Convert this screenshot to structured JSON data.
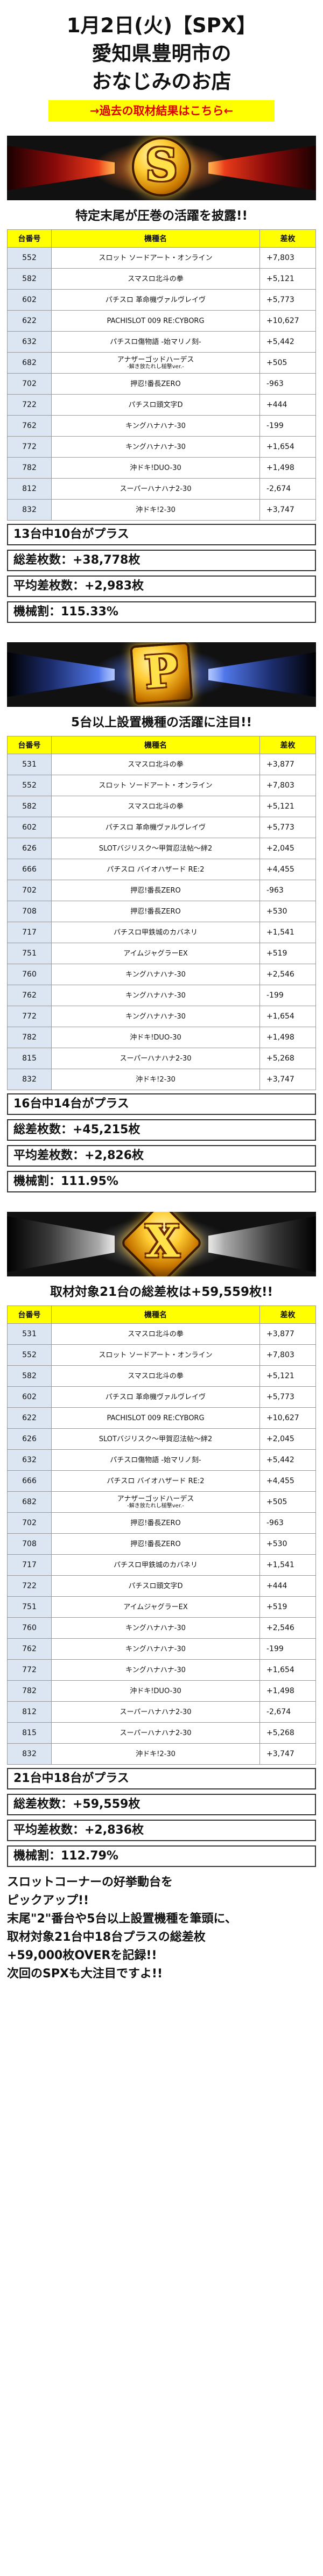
{
  "header": {
    "line1": "1月2日(火)【SPX】",
    "line2": "愛知県豊明市の",
    "line3": "おなじみのお店",
    "cta": "→過去の取材結果はこちら←"
  },
  "colors": {
    "highlight_yellow": "#ffff00",
    "cta_red": "#e00000",
    "id_cell": "#dce6f2"
  },
  "table_headers": {
    "id": "台番号",
    "name": "機種名",
    "diff": "差枚"
  },
  "sections": [
    {
      "banner_letter": "S",
      "title": "特定末尾が圧巻の活躍を披露!!",
      "rows": [
        {
          "id": "552",
          "name": "スロット ソードアート・オンライン",
          "sub": "",
          "diff": "+7,803"
        },
        {
          "id": "582",
          "name": "スマスロ北斗の拳",
          "sub": "",
          "diff": "+5,121"
        },
        {
          "id": "602",
          "name": "パチスロ 革命機ヴァルヴレイヴ",
          "sub": "",
          "diff": "+5,773"
        },
        {
          "id": "622",
          "name": "PACHISLOT 009 RE:CYBORG",
          "sub": "",
          "diff": "+10,627"
        },
        {
          "id": "632",
          "name": "パチスロ傷物語 -始マリノ刻-",
          "sub": "",
          "diff": "+5,442"
        },
        {
          "id": "682",
          "name": "アナザーゴッドハーデス",
          "sub": "-解き放たれし槌撃ver.-",
          "diff": "+505"
        },
        {
          "id": "702",
          "name": "押忍!番長ZERO",
          "sub": "",
          "diff": "-963"
        },
        {
          "id": "722",
          "name": "パチスロ頭文字D",
          "sub": "",
          "diff": "+444"
        },
        {
          "id": "762",
          "name": "キングハナハナ-30",
          "sub": "",
          "diff": "-199"
        },
        {
          "id": "772",
          "name": "キングハナハナ-30",
          "sub": "",
          "diff": "+1,654"
        },
        {
          "id": "782",
          "name": "沖ドキ!DUO-30",
          "sub": "",
          "diff": "+1,498"
        },
        {
          "id": "812",
          "name": "スーパーハナハナ2-30",
          "sub": "",
          "diff": "-2,674"
        },
        {
          "id": "832",
          "name": "沖ドキ!2-30",
          "sub": "",
          "diff": "+3,747"
        }
      ],
      "summary": [
        "13台中10台がプラス",
        "総差枚数：+38,778枚",
        "平均差枚数：+2,983枚",
        "機械割：115.33%"
      ]
    },
    {
      "banner_letter": "P",
      "title": "5台以上設置機種の活躍に注目!!",
      "rows": [
        {
          "id": "531",
          "name": "スマスロ北斗の拳",
          "sub": "",
          "diff": "+3,877"
        },
        {
          "id": "552",
          "name": "スロット ソードアート・オンライン",
          "sub": "",
          "diff": "+7,803"
        },
        {
          "id": "582",
          "name": "スマスロ北斗の拳",
          "sub": "",
          "diff": "+5,121"
        },
        {
          "id": "602",
          "name": "パチスロ 革命機ヴァルヴレイヴ",
          "sub": "",
          "diff": "+5,773"
        },
        {
          "id": "626",
          "name": "SLOTバジリスク～甲賀忍法帖～絆2",
          "sub": "",
          "diff": "+2,045"
        },
        {
          "id": "666",
          "name": "パチスロ バイオハザード RE:2",
          "sub": "",
          "diff": "+4,455"
        },
        {
          "id": "702",
          "name": "押忍!番長ZERO",
          "sub": "",
          "diff": "-963"
        },
        {
          "id": "708",
          "name": "押忍!番長ZERO",
          "sub": "",
          "diff": "+530"
        },
        {
          "id": "717",
          "name": "パチスロ甲鉄城のカバネリ",
          "sub": "",
          "diff": "+1,541"
        },
        {
          "id": "751",
          "name": "アイムジャグラーEX",
          "sub": "",
          "diff": "+519"
        },
        {
          "id": "760",
          "name": "キングハナハナ-30",
          "sub": "",
          "diff": "+2,546"
        },
        {
          "id": "762",
          "name": "キングハナハナ-30",
          "sub": "",
          "diff": "-199"
        },
        {
          "id": "772",
          "name": "キングハナハナ-30",
          "sub": "",
          "diff": "+1,654"
        },
        {
          "id": "782",
          "name": "沖ドキ!DUO-30",
          "sub": "",
          "diff": "+1,498"
        },
        {
          "id": "815",
          "name": "スーパーハナハナ2-30",
          "sub": "",
          "diff": "+5,268"
        },
        {
          "id": "832",
          "name": "沖ドキ!2-30",
          "sub": "",
          "diff": "+3,747"
        }
      ],
      "summary": [
        "16台中14台がプラス",
        "総差枚数：+45,215枚",
        "平均差枚数：+2,826枚",
        "機械割：111.95%"
      ]
    },
    {
      "banner_letter": "X",
      "title": "取材対象21台の総差枚は+59,559枚!!",
      "rows": [
        {
          "id": "531",
          "name": "スマスロ北斗の拳",
          "sub": "",
          "diff": "+3,877"
        },
        {
          "id": "552",
          "name": "スロット ソードアート・オンライン",
          "sub": "",
          "diff": "+7,803"
        },
        {
          "id": "582",
          "name": "スマスロ北斗の拳",
          "sub": "",
          "diff": "+5,121"
        },
        {
          "id": "602",
          "name": "パチスロ 革命機ヴァルヴレイヴ",
          "sub": "",
          "diff": "+5,773"
        },
        {
          "id": "622",
          "name": "PACHISLOT 009 RE:CYBORG",
          "sub": "",
          "diff": "+10,627"
        },
        {
          "id": "626",
          "name": "SLOTバジリスク～甲賀忍法帖～絆2",
          "sub": "",
          "diff": "+2,045"
        },
        {
          "id": "632",
          "name": "パチスロ傷物語 -始マリノ刻-",
          "sub": "",
          "diff": "+5,442"
        },
        {
          "id": "666",
          "name": "パチスロ バイオハザード RE:2",
          "sub": "",
          "diff": "+4,455"
        },
        {
          "id": "682",
          "name": "アナザーゴッドハーデス",
          "sub": "-解き放たれし槌撃ver.-",
          "diff": "+505"
        },
        {
          "id": "702",
          "name": "押忍!番長ZERO",
          "sub": "",
          "diff": "-963"
        },
        {
          "id": "708",
          "name": "押忍!番長ZERO",
          "sub": "",
          "diff": "+530"
        },
        {
          "id": "717",
          "name": "パチスロ甲鉄城のカバネリ",
          "sub": "",
          "diff": "+1,541"
        },
        {
          "id": "722",
          "name": "パチスロ頭文字D",
          "sub": "",
          "diff": "+444"
        },
        {
          "id": "751",
          "name": "アイムジャグラーEX",
          "sub": "",
          "diff": "+519"
        },
        {
          "id": "760",
          "name": "キングハナハナ-30",
          "sub": "",
          "diff": "+2,546"
        },
        {
          "id": "762",
          "name": "キングハナハナ-30",
          "sub": "",
          "diff": "-199"
        },
        {
          "id": "772",
          "name": "キングハナハナ-30",
          "sub": "",
          "diff": "+1,654"
        },
        {
          "id": "782",
          "name": "沖ドキ!DUO-30",
          "sub": "",
          "diff": "+1,498"
        },
        {
          "id": "812",
          "name": "スーパーハナハナ2-30",
          "sub": "",
          "diff": "-2,674"
        },
        {
          "id": "815",
          "name": "スーパーハナハナ2-30",
          "sub": "",
          "diff": "+5,268"
        },
        {
          "id": "832",
          "name": "沖ドキ!2-30",
          "sub": "",
          "diff": "+3,747"
        }
      ],
      "summary": [
        "21台中18台がプラス",
        "総差枚数：+59,559枚",
        "平均差枚数：+2,836枚",
        "機械割：112.79%"
      ]
    }
  ],
  "outro": [
    "スロットコーナーの好挙動台を",
    "ピックアップ!!",
    "末尾\"2\"番台や5台以上設置機種を筆頭に、",
    "取材対象21台中18台プラスの総差枚",
    "+59,000枚OVERを記録!!",
    "次回のSPXも大注目ですよ!!"
  ]
}
